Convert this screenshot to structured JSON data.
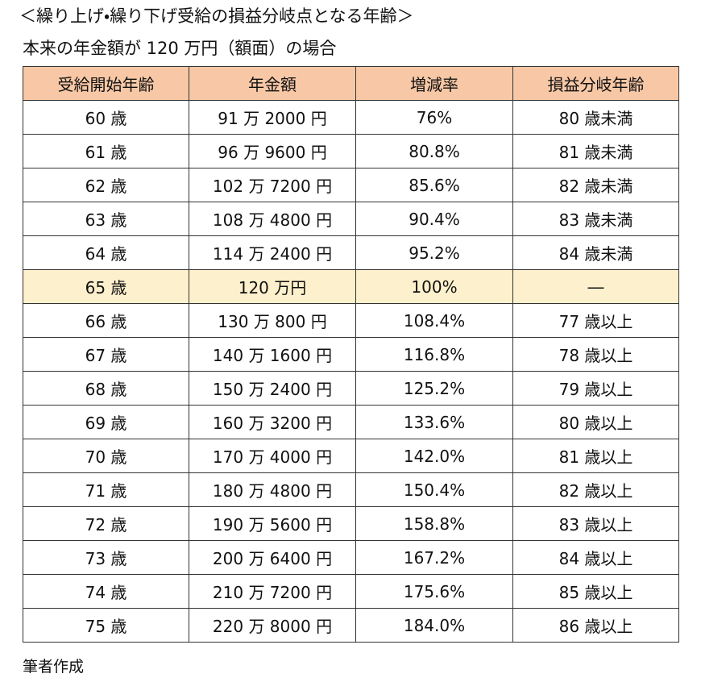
{
  "title": "＜繰り上げ・繰り下げ受給の損益分岐点となる年齢＞",
  "subtitle": "本来の年金額が 120 万円（額面）の場合",
  "table": {
    "header": [
      "受給開始年齢",
      "年金額",
      "増減率",
      "損益分岐年齢"
    ],
    "rows": [
      [
        "60 歳",
        "91 万 2000 円",
        "76%",
        "80 歳未満"
      ],
      [
        "61 歳",
        "96 万 9600 円",
        "80.8%",
        "81 歳未満"
      ],
      [
        "62 歳",
        "102 万 7200 円",
        "85.6%",
        "82 歳未満"
      ],
      [
        "63 歳",
        "108 万 4800 円",
        "90.4%",
        "83 歳未満"
      ],
      [
        "64 歳",
        "114 万 2400 円",
        "95.2%",
        "84 歳未満"
      ],
      [
        "65 歳",
        "120 万円",
        "100%",
        "―"
      ],
      [
        "66 歳",
        "130 万 800 円",
        "108.4%",
        "77 歳以上"
      ],
      [
        "67 歳",
        "140 万 1600 円",
        "116.8%",
        "78 歳以上"
      ],
      [
        "68 歳",
        "150 万 2400 円",
        "125.2%",
        "79 歳以上"
      ],
      [
        "69 歳",
        "160 万 3200 円",
        "133.6%",
        "80 歳以上"
      ],
      [
        "70 歳",
        "170 万 4000 円",
        "142.0%",
        "81 歳以上"
      ],
      [
        "71 歳",
        "180 万 4800 円",
        "150.4%",
        "82 歳以上"
      ],
      [
        "72 歳",
        "190 万 5600 円",
        "158.8%",
        "83 歳以上"
      ],
      [
        "73 歳",
        "200 万 6400 円",
        "167.2%",
        "84 歳以上"
      ],
      [
        "74 歳",
        "210 万 7200 円",
        "175.6%",
        "85 歳以上"
      ],
      [
        "75 歳",
        "220 万 8000 円",
        "184.0%",
        "86 歳以上"
      ]
    ]
  },
  "footnote": "筆者作成"
}
